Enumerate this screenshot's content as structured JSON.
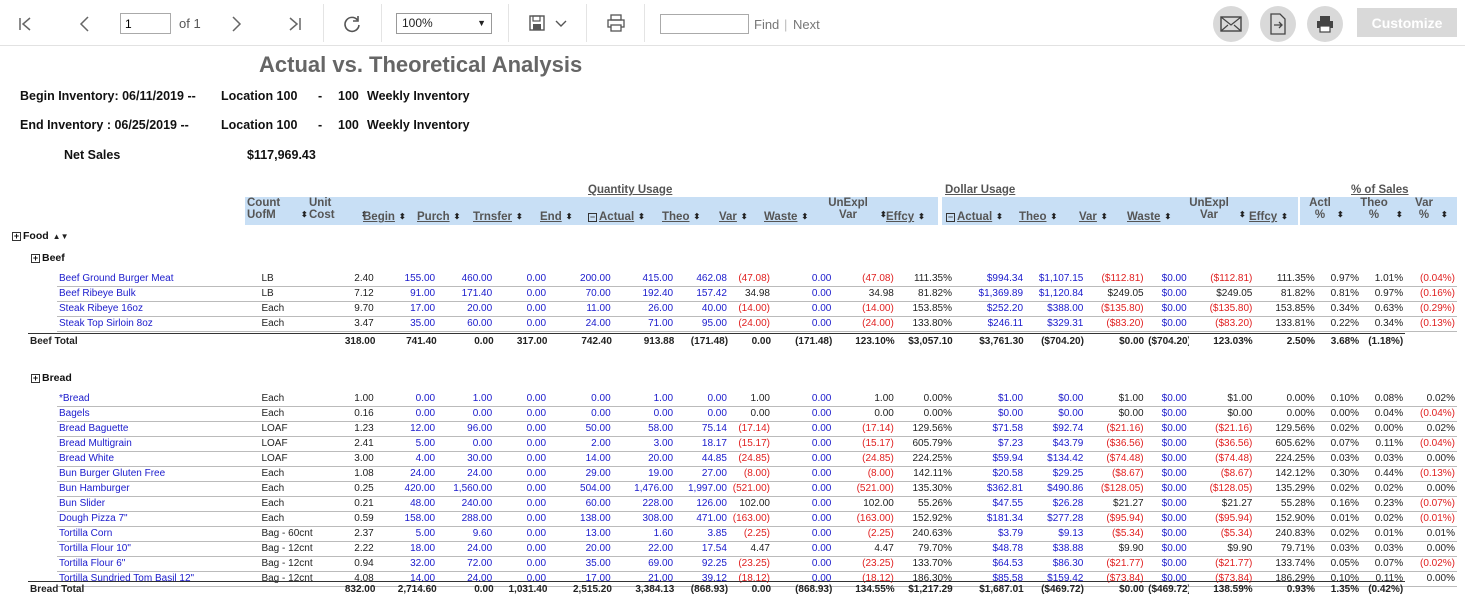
{
  "toolbar": {
    "page": "1",
    "of": "of 1",
    "zoom": "100%",
    "find_label": "Find",
    "divider": "|",
    "next_label": "Next",
    "customize": "Customize"
  },
  "report": {
    "title": "Actual vs. Theoretical Analysis",
    "begin": {
      "label": "Begin Inventory: 06/11/2019 --",
      "location": "Location 100",
      "dash": "-",
      "num": "100",
      "name": "Weekly Inventory"
    },
    "end": {
      "label": "End Inventory  : 06/25/2019 --",
      "location": "Location 100",
      "dash": "-",
      "num": "100",
      "name": "Weekly Inventory"
    },
    "net_sales_label": "Net Sales",
    "net_sales": "$117,969.43",
    "groups": {
      "qty": "Quantity Usage",
      "dollar": "Dollar Usage",
      "pct": "% of Sales"
    },
    "cols": [
      "Count UofM",
      "Unit Cost",
      "Begin",
      "Purch",
      "Trnsfer",
      "End",
      "Actual",
      "Theo",
      "Var",
      "Waste",
      "UnExpl Var",
      "Effcy",
      "Actual",
      "Theo",
      "Var",
      "Waste",
      "UnExpl Var",
      "Effcy",
      "Actl %",
      "Theo %",
      "Var %"
    ],
    "category": "Food",
    "beef": {
      "name": "Beef",
      "total_label": "Beef Total",
      "rows": [
        [
          "Beef Ground Burger Meat",
          "LB",
          "2.40",
          "155.00",
          "460.00",
          "0.00",
          "200.00",
          "415.00",
          "462.08",
          "(47.08)",
          "0.00",
          "(47.08)",
          "111.35%",
          "$994.34",
          "$1,107.15",
          "($112.81)",
          "$0.00",
          "($112.81)",
          "111.35%",
          "0.97%",
          "1.01%",
          "(0.04%)"
        ],
        [
          "Beef Ribeye Bulk",
          "LB",
          "7.12",
          "91.00",
          "171.40",
          "0.00",
          "70.00",
          "192.40",
          "157.42",
          "34.98",
          "0.00",
          "34.98",
          "81.82%",
          "$1,369.89",
          "$1,120.84",
          "$249.05",
          "$0.00",
          "$249.05",
          "81.82%",
          "0.81%",
          "0.97%",
          "(0.16%)"
        ],
        [
          "Steak Ribeye 16oz",
          "Each",
          "9.70",
          "17.00",
          "20.00",
          "0.00",
          "11.00",
          "26.00",
          "40.00",
          "(14.00)",
          "0.00",
          "(14.00)",
          "153.85%",
          "$252.20",
          "$388.00",
          "($135.80)",
          "$0.00",
          "($135.80)",
          "153.85%",
          "0.34%",
          "0.63%",
          "(0.29%)"
        ],
        [
          "Steak Top Sirloin 8oz",
          "Each",
          "3.47",
          "35.00",
          "60.00",
          "0.00",
          "24.00",
          "71.00",
          "95.00",
          "(24.00)",
          "0.00",
          "(24.00)",
          "133.80%",
          "$246.11",
          "$329.31",
          "($83.20)",
          "$0.00",
          "($83.20)",
          "133.81%",
          "0.22%",
          "0.34%",
          "(0.13%)"
        ]
      ],
      "total": [
        "",
        "",
        "318.00",
        "741.40",
        "0.00",
        "317.00",
        "742.40",
        "913.88",
        "(171.48)",
        "0.00",
        "(171.48)",
        "123.10%",
        "$3,057.10",
        "$3,761.30",
        "($704.20)",
        "$0.00",
        "($704.20)",
        "123.03%",
        "2.50%",
        "3.68%",
        "(1.18%)"
      ]
    },
    "bread": {
      "name": "Bread",
      "total_label": "Bread Total",
      "rows": [
        [
          "*Bread",
          "Each",
          "1.00",
          "0.00",
          "1.00",
          "0.00",
          "0.00",
          "1.00",
          "0.00",
          "1.00",
          "0.00",
          "1.00",
          "0.00%",
          "$1.00",
          "$0.00",
          "$1.00",
          "$0.00",
          "$1.00",
          "0.00%",
          "0.10%",
          "0.08%",
          "0.02%"
        ],
        [
          "Bagels",
          "Each",
          "0.16",
          "0.00",
          "0.00",
          "0.00",
          "0.00",
          "0.00",
          "0.00",
          "0.00",
          "0.00",
          "0.00",
          "0.00%",
          "$0.00",
          "$0.00",
          "$0.00",
          "$0.00",
          "$0.00",
          "0.00%",
          "0.00%",
          "0.04%",
          "(0.04%)"
        ],
        [
          "Bread Baguette",
          "LOAF",
          "1.23",
          "12.00",
          "96.00",
          "0.00",
          "50.00",
          "58.00",
          "75.14",
          "(17.14)",
          "0.00",
          "(17.14)",
          "129.56%",
          "$71.58",
          "$92.74",
          "($21.16)",
          "$0.00",
          "($21.16)",
          "129.56%",
          "0.02%",
          "0.00%",
          "0.02%"
        ],
        [
          "Bread Multigrain",
          "LOAF",
          "2.41",
          "5.00",
          "0.00",
          "0.00",
          "2.00",
          "3.00",
          "18.17",
          "(15.17)",
          "0.00",
          "(15.17)",
          "605.79%",
          "$7.23",
          "$43.79",
          "($36.56)",
          "$0.00",
          "($36.56)",
          "605.62%",
          "0.07%",
          "0.11%",
          "(0.04%)"
        ],
        [
          "Bread White",
          "LOAF",
          "3.00",
          "4.00",
          "30.00",
          "0.00",
          "14.00",
          "20.00",
          "44.85",
          "(24.85)",
          "0.00",
          "(24.85)",
          "224.25%",
          "$59.94",
          "$134.42",
          "($74.48)",
          "$0.00",
          "($74.48)",
          "224.25%",
          "0.03%",
          "0.03%",
          "0.00%"
        ],
        [
          "Bun Burger Gluten Free",
          "Each",
          "1.08",
          "24.00",
          "24.00",
          "0.00",
          "29.00",
          "19.00",
          "27.00",
          "(8.00)",
          "0.00",
          "(8.00)",
          "142.11%",
          "$20.58",
          "$29.25",
          "($8.67)",
          "$0.00",
          "($8.67)",
          "142.12%",
          "0.30%",
          "0.44%",
          "(0.13%)"
        ],
        [
          "Bun Hamburger",
          "Each",
          "0.25",
          "420.00",
          "1,560.00",
          "0.00",
          "504.00",
          "1,476.00",
          "1,997.00",
          "(521.00)",
          "0.00",
          "(521.00)",
          "135.30%",
          "$362.81",
          "$490.86",
          "($128.05)",
          "$0.00",
          "($128.05)",
          "135.29%",
          "0.02%",
          "0.02%",
          "0.00%"
        ],
        [
          "Bun Slider",
          "Each",
          "0.21",
          "48.00",
          "240.00",
          "0.00",
          "60.00",
          "228.00",
          "126.00",
          "102.00",
          "0.00",
          "102.00",
          "55.26%",
          "$47.55",
          "$26.28",
          "$21.27",
          "$0.00",
          "$21.27",
          "55.28%",
          "0.16%",
          "0.23%",
          "(0.07%)"
        ],
        [
          "Dough Pizza 7\"",
          "Each",
          "0.59",
          "158.00",
          "288.00",
          "0.00",
          "138.00",
          "308.00",
          "471.00",
          "(163.00)",
          "0.00",
          "(163.00)",
          "152.92%",
          "$181.34",
          "$277.28",
          "($95.94)",
          "$0.00",
          "($95.94)",
          "152.90%",
          "0.01%",
          "0.02%",
          "(0.01%)"
        ],
        [
          "Tortilla Corn",
          "Bag - 60cnt",
          "2.37",
          "5.00",
          "9.60",
          "0.00",
          "13.00",
          "1.60",
          "3.85",
          "(2.25)",
          "0.00",
          "(2.25)",
          "240.63%",
          "$3.79",
          "$9.13",
          "($5.34)",
          "$0.00",
          "($5.34)",
          "240.83%",
          "0.02%",
          "0.01%",
          "0.01%"
        ],
        [
          "Tortilla Flour 10\"",
          "Bag - 12cnt",
          "2.22",
          "18.00",
          "24.00",
          "0.00",
          "20.00",
          "22.00",
          "17.54",
          "4.47",
          "0.00",
          "4.47",
          "79.70%",
          "$48.78",
          "$38.88",
          "$9.90",
          "$0.00",
          "$9.90",
          "79.71%",
          "0.03%",
          "0.03%",
          "0.00%"
        ],
        [
          "Tortilla Flour 6\"",
          "Bag - 12cnt",
          "0.94",
          "32.00",
          "72.00",
          "0.00",
          "35.00",
          "69.00",
          "92.25",
          "(23.25)",
          "0.00",
          "(23.25)",
          "133.70%",
          "$64.53",
          "$86.30",
          "($21.77)",
          "$0.00",
          "($21.77)",
          "133.74%",
          "0.05%",
          "0.07%",
          "(0.02%)"
        ],
        [
          "Tortilla Sundried Tom Basil 12\"",
          "Bag - 12cnt",
          "4.08",
          "14.00",
          "24.00",
          "0.00",
          "17.00",
          "21.00",
          "39.12",
          "(18.12)",
          "0.00",
          "(18.12)",
          "186.30%",
          "$85.58",
          "$159.42",
          "($73.84)",
          "$0.00",
          "($73.84)",
          "186.29%",
          "0.10%",
          "0.11%",
          "0.00%"
        ]
      ],
      "total": [
        "",
        "",
        "832.00",
        "2,714.60",
        "0.00",
        "1,031.40",
        "2,515.20",
        "3,384.13",
        "(868.93)",
        "0.00",
        "(868.93)",
        "134.55%",
        "$1,217.29",
        "$1,687.01",
        "($469.72)",
        "$0.00",
        "($469.72)",
        "138.59%",
        "0.93%",
        "1.35%",
        "(0.42%)"
      ]
    }
  }
}
